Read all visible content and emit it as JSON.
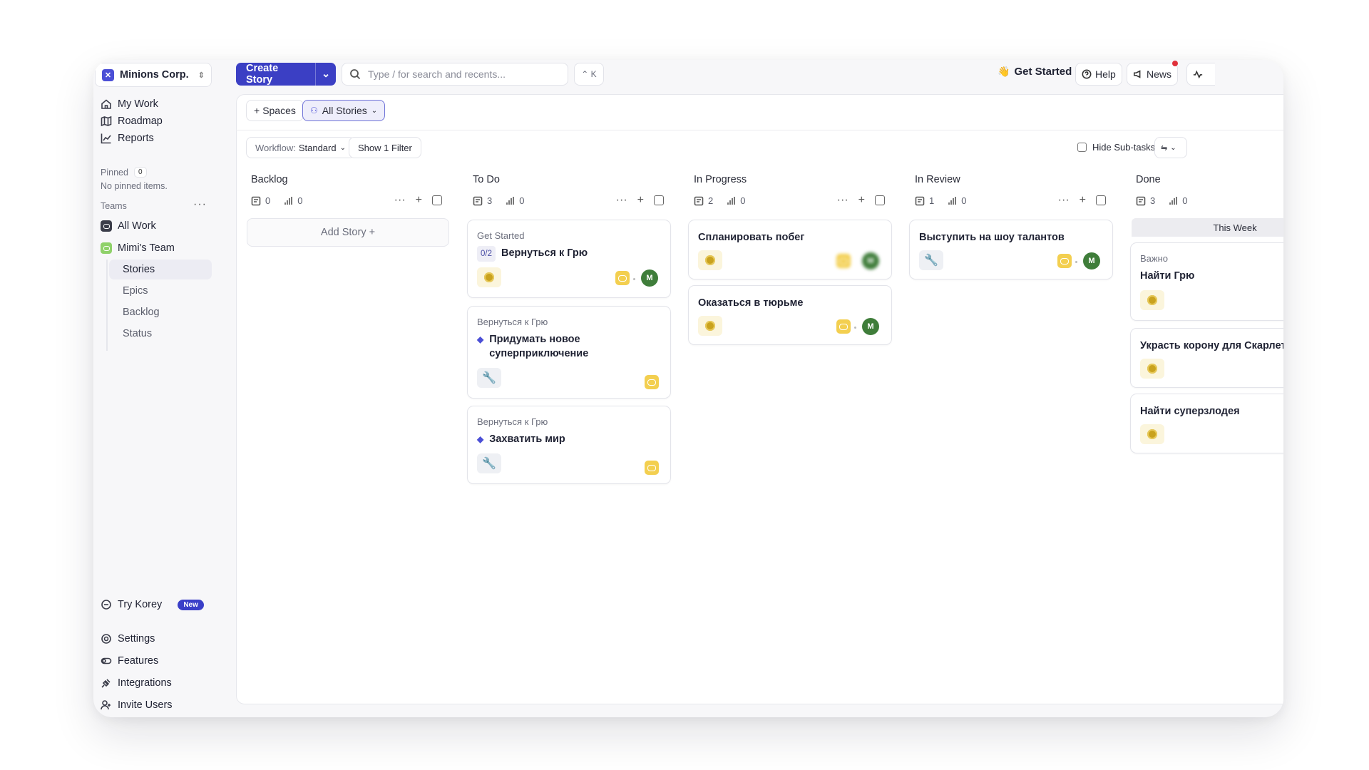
{
  "workspace": {
    "name": "Minions Corp."
  },
  "sidebar": {
    "nav": [
      {
        "label": "My Work",
        "icon": "home-icon"
      },
      {
        "label": "Roadmap",
        "icon": "map-icon"
      },
      {
        "label": "Reports",
        "icon": "chart-icon"
      }
    ],
    "pinned_label": "Pinned",
    "pinned_count": "0",
    "no_pinned": "No pinned items.",
    "teams_label": "Teams",
    "teams_more": "···",
    "all_work": "All Work",
    "team_name": "Mimi's Team",
    "team_items": [
      "Stories",
      "Epics",
      "Backlog",
      "Status"
    ],
    "try_korey": "Try Korey",
    "new_badge": "New",
    "bottom": [
      "Settings",
      "Features",
      "Integrations",
      "Invite Users"
    ]
  },
  "topbar": {
    "create_label": "Create Story",
    "search_placeholder": "Type / for search and recents...",
    "shortcut": "⌃ K",
    "get_started": "Get Started",
    "help": "Help",
    "news": "News"
  },
  "subbar": {
    "spaces": "Spaces",
    "all_stories": "All Stories"
  },
  "filterbar": {
    "workflow_label": "Workflow:",
    "workflow_value": "Standard",
    "show_filter": "Show 1 Filter",
    "hide_subtasks": "Hide Sub-tasks"
  },
  "columns": [
    {
      "title": "Backlog",
      "stories": "0",
      "points": "0",
      "add_story": "Add Story +"
    },
    {
      "title": "To Do",
      "stories": "3",
      "points": "0"
    },
    {
      "title": "In Progress",
      "stories": "2",
      "points": "0"
    },
    {
      "title": "In Review",
      "stories": "1",
      "points": "0"
    },
    {
      "title": "Done",
      "stories": "3",
      "points": "0",
      "group": "This Week"
    }
  ],
  "cards": {
    "todo": [
      {
        "parent": "Get Started",
        "progress": "0/2",
        "title": "Вернуться к Грю",
        "tag": "sun",
        "avatar": "M"
      },
      {
        "parent": "Вернуться к Грю",
        "title": "Придумать новое суперприключение",
        "tag": "tool"
      },
      {
        "parent": "Вернуться к Грю",
        "title": "Захватить мир",
        "tag": "tool"
      }
    ],
    "in_progress": [
      {
        "title": "Спланировать побег",
        "tag": "sun",
        "avatar": "M"
      },
      {
        "title": "Оказаться в тюрьме",
        "tag": "sun",
        "avatar": "M"
      }
    ],
    "in_review": [
      {
        "title": "Выступить на шоу талантов",
        "tag": "tool",
        "avatar": "M"
      }
    ],
    "done": [
      {
        "parent": "Важно",
        "title": "Найти Грю",
        "tag": "sun"
      },
      {
        "title": "Украсть корону для Скарлет",
        "tag": "sun"
      },
      {
        "title": "Найти суперзлодея",
        "tag": "sun"
      }
    ]
  },
  "colors": {
    "accent": "#3b3fc4",
    "avatar": "#3f7d3a",
    "team": "#f3cf50",
    "sun": "#c9a21e"
  }
}
